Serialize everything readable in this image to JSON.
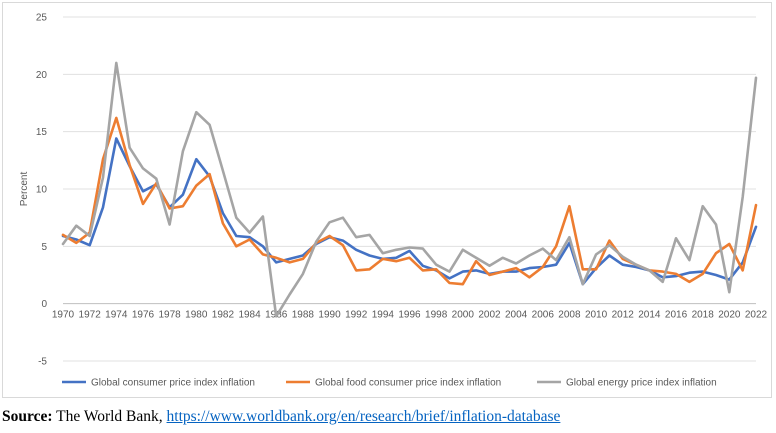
{
  "chart_data": {
    "type": "line",
    "title": "",
    "xlabel": "",
    "ylabel": "Percent",
    "ylim": [
      -5,
      25
    ],
    "yticks": [
      -5,
      0,
      5,
      10,
      15,
      20,
      25
    ],
    "xlim": [
      1970,
      2022
    ],
    "xticks": [
      1970,
      1972,
      1974,
      1976,
      1978,
      1980,
      1982,
      1984,
      1986,
      1988,
      1990,
      1992,
      1994,
      1996,
      1998,
      2000,
      2002,
      2004,
      2006,
      2008,
      2010,
      2012,
      2014,
      2016,
      2018,
      2020,
      2022
    ],
    "grid": "horizontal",
    "legend": "bottom",
    "x": [
      1970,
      1971,
      1972,
      1973,
      1974,
      1975,
      1976,
      1977,
      1978,
      1979,
      1980,
      1981,
      1982,
      1983,
      1984,
      1985,
      1986,
      1987,
      1988,
      1989,
      1990,
      1991,
      1992,
      1993,
      1994,
      1995,
      1996,
      1997,
      1998,
      1999,
      2000,
      2001,
      2002,
      2003,
      2004,
      2005,
      2006,
      2007,
      2008,
      2009,
      2010,
      2011,
      2012,
      2013,
      2014,
      2015,
      2016,
      2017,
      2018,
      2019,
      2020,
      2021,
      2022
    ],
    "series": [
      {
        "name": "Global consumer price index inflation",
        "color": "#4472c4",
        "values": [
          5.9,
          5.6,
          5.1,
          8.4,
          14.4,
          12.0,
          9.8,
          10.4,
          8.4,
          9.5,
          12.6,
          11.1,
          7.9,
          5.9,
          5.8,
          5.0,
          3.6,
          3.9,
          4.2,
          5.2,
          5.8,
          5.5,
          4.7,
          4.2,
          3.9,
          4.0,
          4.6,
          3.3,
          2.9,
          2.2,
          2.8,
          2.9,
          2.6,
          2.8,
          2.8,
          3.1,
          3.2,
          3.4,
          5.3,
          1.7,
          3.1,
          4.2,
          3.4,
          3.2,
          2.9,
          2.3,
          2.4,
          2.7,
          2.8,
          2.5,
          2.1,
          3.6,
          6.7
        ]
      },
      {
        "name": "Global food consumer price index inflation",
        "color": "#ed7d31",
        "values": [
          6.0,
          5.3,
          6.2,
          12.6,
          16.2,
          12.1,
          8.7,
          10.5,
          8.3,
          8.5,
          10.3,
          11.3,
          7.0,
          5.0,
          5.6,
          4.3,
          4.0,
          3.6,
          3.9,
          5.3,
          5.9,
          5.1,
          2.9,
          3.0,
          3.9,
          3.7,
          4.0,
          2.9,
          3.0,
          1.8,
          1.7,
          3.7,
          2.5,
          2.8,
          3.1,
          2.3,
          3.2,
          5.0,
          8.5,
          3.0,
          3.0,
          5.5,
          3.9,
          3.4,
          2.9,
          2.8,
          2.6,
          1.9,
          2.6,
          4.4,
          5.2,
          2.9,
          8.6
        ]
      },
      {
        "name": "Global energy price index inflation",
        "color": "#a5a5a5",
        "values": [
          5.2,
          6.8,
          5.9,
          11.0,
          21.0,
          13.6,
          11.8,
          10.9,
          6.9,
          13.3,
          16.7,
          15.6,
          11.6,
          7.5,
          6.2,
          7.6,
          -1.1,
          0.8,
          2.6,
          5.4,
          7.1,
          7.5,
          5.8,
          6.0,
          4.4,
          4.7,
          4.9,
          4.8,
          3.4,
          2.8,
          4.7,
          4.0,
          3.3,
          4.0,
          3.5,
          4.2,
          4.8,
          3.8,
          5.8,
          1.7,
          4.3,
          5.1,
          4.1,
          3.4,
          2.9,
          1.9,
          5.7,
          3.8,
          8.5,
          6.9,
          1.0,
          9.3,
          19.7
        ]
      }
    ]
  },
  "source": {
    "label": "Source:",
    "text": "The World Bank,",
    "link": "https://www.worldbank.org/en/research/brief/inflation-database"
  }
}
